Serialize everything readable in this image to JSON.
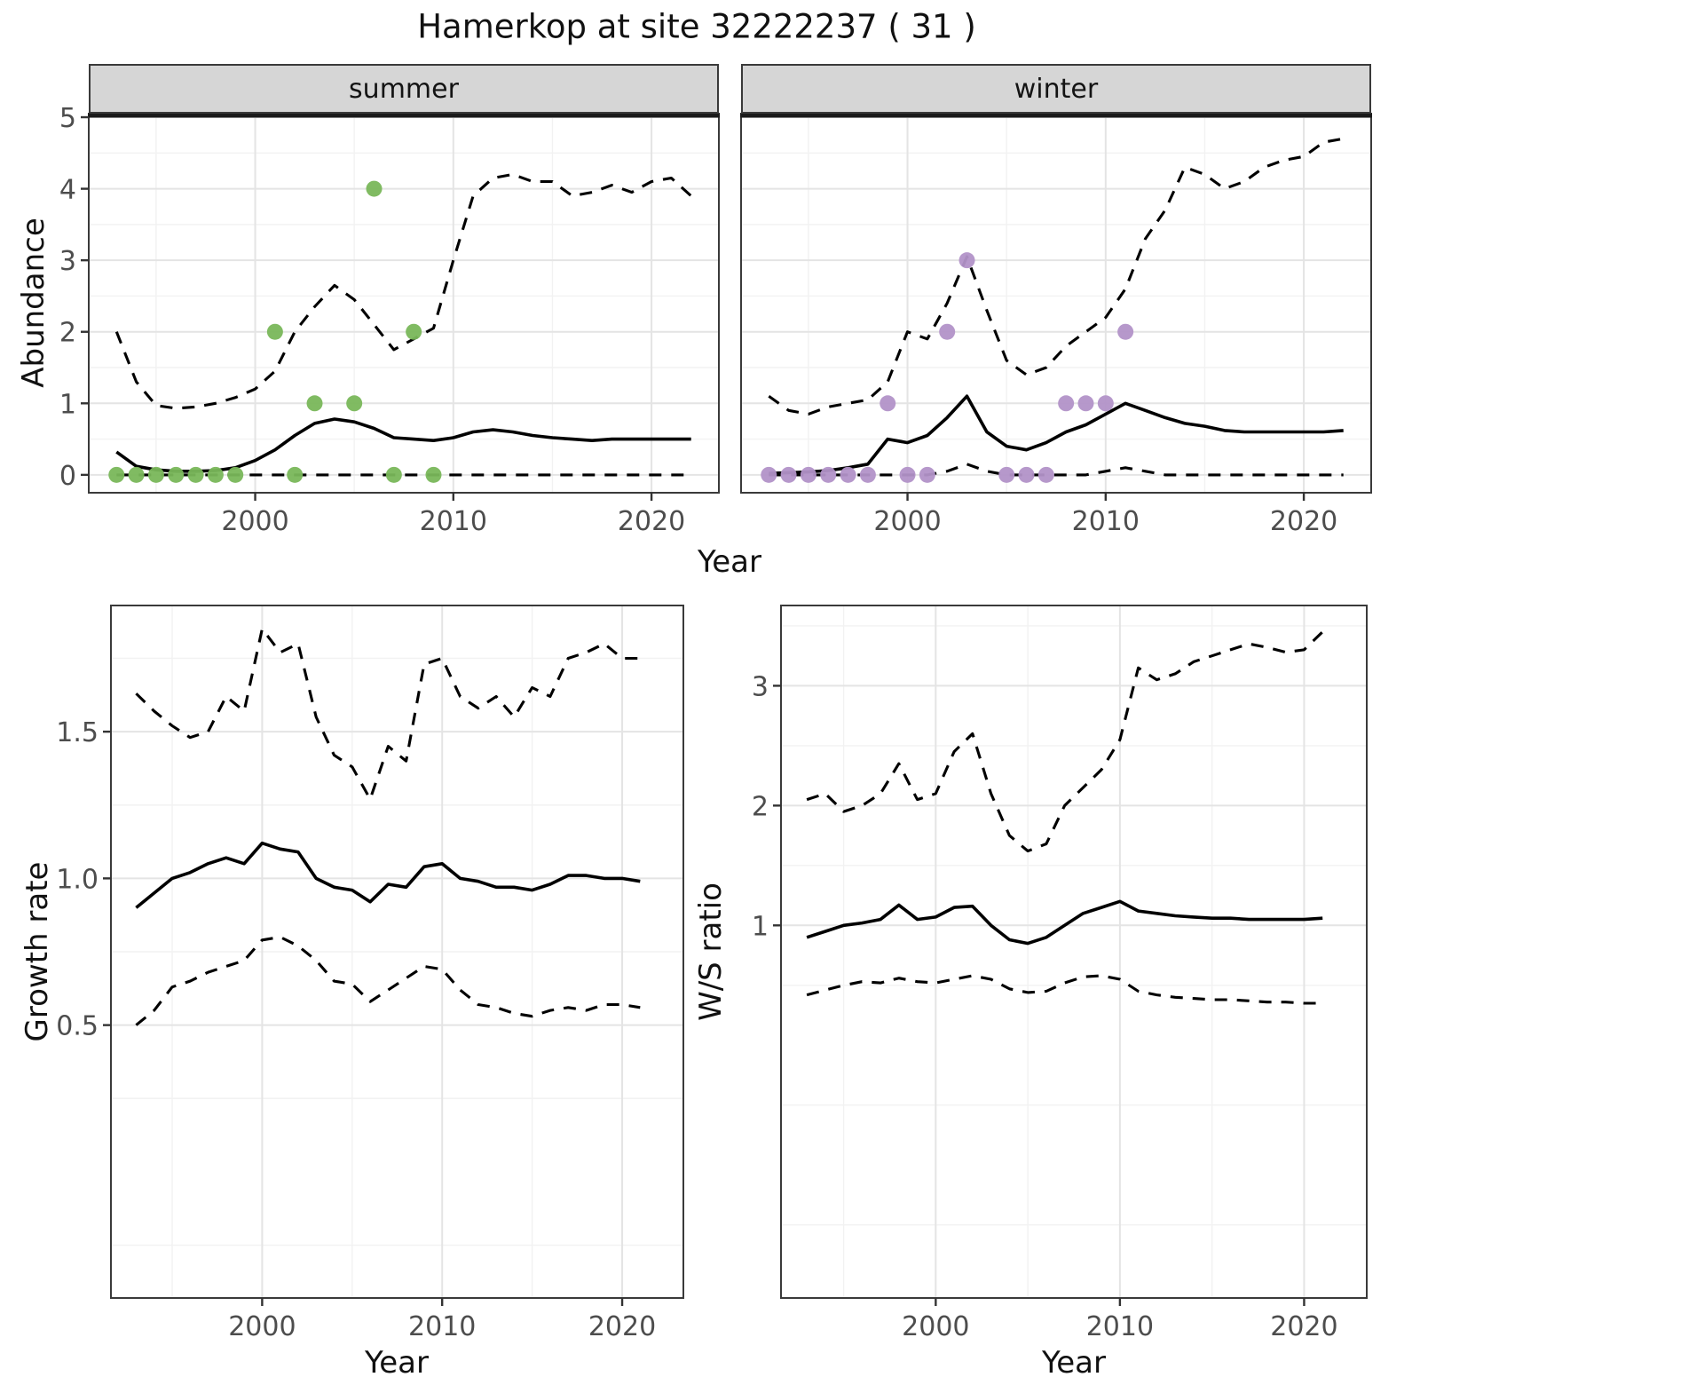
{
  "title": "Hamerkop at site 32222237 ( 31 )",
  "colors": {
    "summer_points": "#79b75a",
    "winter_points": "#b292c8",
    "line": "#000000",
    "grid_major": "#e4e4e4",
    "grid_minor": "#f2f2f2",
    "panel_border": "#3a3a3a",
    "panel_top_rule": "#1a1a1a",
    "strip_background": "#d6d6d6",
    "strip_border": "#3a3a3a",
    "axis_tick_text": "#4d4d4d"
  },
  "chart_data": [
    {
      "id": "abundance-summer",
      "type": "line",
      "facet_label": "summer",
      "xlabel": "Year",
      "ylabel": "Abundance",
      "xlim": [
        1991.6,
        2023.4
      ],
      "ylim": [
        -0.25,
        5.05
      ],
      "xticks": [
        2000,
        2010,
        2020
      ],
      "xtick_labels": [
        "2000",
        "2010",
        "2020"
      ],
      "yticks": [
        0,
        1,
        2,
        3,
        4,
        5
      ],
      "ytick_labels": [
        "0",
        "1",
        "2",
        "3",
        "4",
        "5"
      ],
      "x_minor": [
        1995,
        2005,
        2015
      ],
      "y_minor": [
        0.5,
        1.5,
        2.5,
        3.5,
        4.5
      ],
      "grid": true,
      "legend": "none",
      "series": [
        {
          "name": "mean",
          "style": "solid",
          "x": [
            1993,
            1994,
            1995,
            1996,
            1997,
            1998,
            1999,
            2000,
            2001,
            2002,
            2003,
            2004,
            2005,
            2006,
            2007,
            2008,
            2009,
            2010,
            2011,
            2012,
            2013,
            2014,
            2015,
            2016,
            2017,
            2018,
            2019,
            2020,
            2021,
            2022
          ],
          "y": [
            0.32,
            0.12,
            0.07,
            0.05,
            0.05,
            0.06,
            0.1,
            0.2,
            0.35,
            0.55,
            0.72,
            0.78,
            0.74,
            0.65,
            0.52,
            0.5,
            0.48,
            0.52,
            0.6,
            0.63,
            0.6,
            0.55,
            0.52,
            0.5,
            0.48,
            0.5,
            0.5,
            0.5,
            0.5,
            0.5
          ]
        },
        {
          "name": "upper-ci",
          "style": "dashed",
          "x": [
            1993,
            1994,
            1995,
            1996,
            1997,
            1998,
            1999,
            2000,
            2001,
            2002,
            2003,
            2004,
            2005,
            2006,
            2007,
            2008,
            2009,
            2010,
            2011,
            2012,
            2013,
            2014,
            2015,
            2016,
            2017,
            2018,
            2019,
            2020,
            2021,
            2022
          ],
          "y": [
            2.0,
            1.3,
            0.97,
            0.93,
            0.95,
            1.0,
            1.08,
            1.2,
            1.45,
            2.0,
            2.35,
            2.65,
            2.45,
            2.1,
            1.75,
            1.9,
            2.05,
            3.0,
            3.9,
            4.15,
            4.2,
            4.1,
            4.1,
            3.9,
            3.95,
            4.05,
            3.95,
            4.1,
            4.15,
            3.9
          ]
        },
        {
          "name": "lower-ci",
          "style": "dashed",
          "x": [
            1993,
            1994,
            1995,
            1996,
            1997,
            1998,
            1999,
            2000,
            2001,
            2002,
            2003,
            2004,
            2005,
            2006,
            2007,
            2008,
            2009,
            2010,
            2011,
            2012,
            2013,
            2014,
            2015,
            2016,
            2017,
            2018,
            2019,
            2020,
            2021,
            2022
          ],
          "y": [
            0,
            0,
            0,
            0,
            0,
            0,
            0,
            0,
            0,
            0,
            0,
            0,
            0,
            0,
            0,
            0,
            0,
            0,
            0,
            0,
            0,
            0,
            0,
            0,
            0,
            0,
            0,
            0,
            0,
            0
          ]
        }
      ],
      "points": {
        "name": "observed-counts",
        "color_key": "summer_points",
        "x": [
          1993,
          1994,
          1995,
          1996,
          1997,
          1998,
          1999,
          2001,
          2002,
          2003,
          2005,
          2006,
          2007,
          2008,
          2009
        ],
        "y": [
          0,
          0,
          0,
          0,
          0,
          0,
          0,
          2,
          0,
          1,
          1,
          4,
          0,
          2,
          0
        ]
      }
    },
    {
      "id": "abundance-winter",
      "type": "line",
      "facet_label": "winter",
      "xlabel": "Year",
      "ylabel": "Abundance",
      "xlim": [
        1991.6,
        2023.4
      ],
      "ylim": [
        -0.25,
        5.05
      ],
      "xticks": [
        2000,
        2010,
        2020
      ],
      "xtick_labels": [
        "2000",
        "2010",
        "2020"
      ],
      "yticks": [
        0,
        1,
        2,
        3,
        4,
        5
      ],
      "ytick_labels": [
        "0",
        "1",
        "2",
        "3",
        "4",
        "5"
      ],
      "x_minor": [
        1995,
        2005,
        2015
      ],
      "y_minor": [
        0.5,
        1.5,
        2.5,
        3.5,
        4.5
      ],
      "grid": true,
      "legend": "none",
      "series": [
        {
          "name": "mean",
          "style": "solid",
          "x": [
            1993,
            1994,
            1995,
            1996,
            1997,
            1998,
            1999,
            2000,
            2001,
            2002,
            2003,
            2004,
            2005,
            2006,
            2007,
            2008,
            2009,
            2010,
            2011,
            2012,
            2013,
            2014,
            2015,
            2016,
            2017,
            2018,
            2019,
            2020,
            2021,
            2022
          ],
          "y": [
            0.02,
            0.03,
            0.04,
            0.06,
            0.1,
            0.15,
            0.5,
            0.45,
            0.55,
            0.8,
            1.1,
            0.6,
            0.4,
            0.35,
            0.45,
            0.6,
            0.7,
            0.85,
            1.0,
            0.9,
            0.8,
            0.72,
            0.68,
            0.62,
            0.6,
            0.6,
            0.6,
            0.6,
            0.6,
            0.62
          ]
        },
        {
          "name": "upper-ci",
          "style": "dashed",
          "x": [
            1993,
            1994,
            1995,
            1996,
            1997,
            1998,
            1999,
            2000,
            2001,
            2002,
            2003,
            2004,
            2005,
            2006,
            2007,
            2008,
            2009,
            2010,
            2011,
            2012,
            2013,
            2014,
            2015,
            2016,
            2017,
            2018,
            2019,
            2020,
            2021,
            2022
          ],
          "y": [
            1.1,
            0.9,
            0.85,
            0.95,
            1.0,
            1.05,
            1.3,
            2.0,
            1.9,
            2.4,
            3.05,
            2.3,
            1.6,
            1.4,
            1.5,
            1.8,
            2.0,
            2.2,
            2.6,
            3.3,
            3.7,
            4.3,
            4.2,
            4.0,
            4.1,
            4.3,
            4.4,
            4.45,
            4.65,
            4.7
          ]
        },
        {
          "name": "lower-ci",
          "style": "dashed",
          "x": [
            1993,
            1994,
            1995,
            1996,
            1997,
            1998,
            1999,
            2000,
            2001,
            2002,
            2003,
            2004,
            2005,
            2006,
            2007,
            2008,
            2009,
            2010,
            2011,
            2012,
            2013,
            2014,
            2015,
            2016,
            2017,
            2018,
            2019,
            2020,
            2021,
            2022
          ],
          "y": [
            0,
            0,
            0,
            0,
            0,
            0,
            0,
            0,
            0,
            0.05,
            0.15,
            0.05,
            0,
            0,
            0,
            0,
            0,
            0.05,
            0.1,
            0.05,
            0,
            0,
            0,
            0,
            0,
            0,
            0,
            0,
            0,
            0
          ]
        }
      ],
      "points": {
        "name": "observed-counts",
        "color_key": "winter_points",
        "x": [
          1993,
          1994,
          1995,
          1996,
          1997,
          1998,
          1999,
          2000,
          2001,
          2002,
          2003,
          2005,
          2006,
          2007,
          2008,
          2009,
          2010,
          2011
        ],
        "y": [
          0,
          0,
          0,
          0,
          0,
          0,
          1,
          0,
          0,
          2,
          3,
          0,
          0,
          0,
          1,
          1,
          1,
          2
        ]
      }
    },
    {
      "id": "growth-rate",
      "type": "line",
      "xlabel": "Year",
      "ylabel": "Growth rate",
      "xlim": [
        1991.6,
        2023.4
      ],
      "ylim": [
        -0.43,
        1.93
      ],
      "xticks": [
        2000,
        2010,
        2020
      ],
      "xtick_labels": [
        "2000",
        "2010",
        "2020"
      ],
      "yticks": [
        0.5,
        1,
        1.5
      ],
      "ytick_labels": [
        "0.5",
        "1.0",
        "1.5"
      ],
      "x_minor": [
        1995,
        2005,
        2015
      ],
      "y_minor": [
        -0.25,
        0.25,
        0.75,
        1.25,
        1.75
      ],
      "grid": true,
      "legend": "none",
      "series": [
        {
          "name": "mean",
          "style": "solid",
          "x": [
            1993,
            1994,
            1995,
            1996,
            1997,
            1998,
            1999,
            2000,
            2001,
            2002,
            2003,
            2004,
            2005,
            2006,
            2007,
            2008,
            2009,
            2010,
            2011,
            2012,
            2013,
            2014,
            2015,
            2016,
            2017,
            2018,
            2019,
            2020,
            2021
          ],
          "y": [
            0.9,
            0.95,
            1.0,
            1.02,
            1.05,
            1.07,
            1.05,
            1.12,
            1.1,
            1.09,
            1.0,
            0.97,
            0.96,
            0.92,
            0.98,
            0.97,
            1.04,
            1.05,
            1.0,
            0.99,
            0.97,
            0.97,
            0.96,
            0.98,
            1.01,
            1.01,
            1.0,
            1.0,
            0.99
          ]
        },
        {
          "name": "upper-ci",
          "style": "dashed",
          "x": [
            1993,
            1994,
            1995,
            1996,
            1997,
            1998,
            1999,
            2000,
            2001,
            2002,
            2003,
            2004,
            2005,
            2006,
            2007,
            2008,
            2009,
            2010,
            2011,
            2012,
            2013,
            2014,
            2015,
            2016,
            2017,
            2018,
            2019,
            2020,
            2021
          ],
          "y": [
            1.63,
            1.57,
            1.52,
            1.48,
            1.5,
            1.62,
            1.57,
            1.85,
            1.77,
            1.8,
            1.55,
            1.42,
            1.38,
            1.27,
            1.45,
            1.4,
            1.73,
            1.75,
            1.62,
            1.58,
            1.62,
            1.55,
            1.65,
            1.62,
            1.75,
            1.77,
            1.8,
            1.75,
            1.75
          ]
        },
        {
          "name": "lower-ci",
          "style": "dashed",
          "x": [
            1993,
            1994,
            1995,
            1996,
            1997,
            1998,
            1999,
            2000,
            2001,
            2002,
            2003,
            2004,
            2005,
            2006,
            2007,
            2008,
            2009,
            2010,
            2011,
            2012,
            2013,
            2014,
            2015,
            2016,
            2017,
            2018,
            2019,
            2020,
            2021
          ],
          "y": [
            0.5,
            0.55,
            0.63,
            0.65,
            0.68,
            0.7,
            0.72,
            0.79,
            0.8,
            0.77,
            0.72,
            0.65,
            0.64,
            0.58,
            0.62,
            0.66,
            0.7,
            0.69,
            0.62,
            0.57,
            0.56,
            0.54,
            0.53,
            0.55,
            0.56,
            0.55,
            0.57,
            0.57,
            0.56
          ]
        }
      ]
    },
    {
      "id": "ws-ratio",
      "type": "line",
      "xlabel": "Year",
      "ylabel": "W/S ratio",
      "xlim": [
        1991.6,
        2023.4
      ],
      "ylim": [
        -2.11,
        3.67
      ],
      "xticks": [
        2000,
        2010,
        2020
      ],
      "xtick_labels": [
        "2000",
        "2010",
        "2020"
      ],
      "yticks": [
        1,
        2,
        3
      ],
      "ytick_labels": [
        "1",
        "2",
        "3"
      ],
      "x_minor": [
        1995,
        2005,
        2015
      ],
      "y_minor": [
        -1.5,
        -0.5,
        0.5,
        1.5,
        2.5,
        3.5
      ],
      "grid": true,
      "legend": "none",
      "series": [
        {
          "name": "mean",
          "style": "solid",
          "x": [
            1993,
            1994,
            1995,
            1996,
            1997,
            1998,
            1999,
            2000,
            2001,
            2002,
            2003,
            2004,
            2005,
            2006,
            2007,
            2008,
            2009,
            2010,
            2011,
            2012,
            2013,
            2014,
            2015,
            2016,
            2017,
            2018,
            2019,
            2020,
            2021
          ],
          "y": [
            0.9,
            0.95,
            1.0,
            1.02,
            1.05,
            1.17,
            1.05,
            1.07,
            1.15,
            1.16,
            1.0,
            0.88,
            0.85,
            0.9,
            1.0,
            1.1,
            1.15,
            1.2,
            1.12,
            1.1,
            1.08,
            1.07,
            1.06,
            1.06,
            1.05,
            1.05,
            1.05,
            1.05,
            1.06
          ]
        },
        {
          "name": "upper-ci",
          "style": "dashed",
          "x": [
            1993,
            1994,
            1995,
            1996,
            1997,
            1998,
            1999,
            2000,
            2001,
            2002,
            2003,
            2004,
            2005,
            2006,
            2007,
            2008,
            2009,
            2010,
            2011,
            2012,
            2013,
            2014,
            2015,
            2016,
            2017,
            2018,
            2019,
            2020,
            2021
          ],
          "y": [
            2.05,
            2.1,
            1.95,
            2.0,
            2.1,
            2.35,
            2.05,
            2.1,
            2.45,
            2.6,
            2.1,
            1.75,
            1.62,
            1.68,
            2.0,
            2.15,
            2.3,
            2.55,
            3.15,
            3.05,
            3.1,
            3.2,
            3.25,
            3.3,
            3.35,
            3.32,
            3.28,
            3.3,
            3.45
          ]
        },
        {
          "name": "lower-ci",
          "style": "dashed",
          "x": [
            1993,
            1994,
            1995,
            1996,
            1997,
            1998,
            1999,
            2000,
            2001,
            2002,
            2003,
            2004,
            2005,
            2006,
            2007,
            2008,
            2009,
            2010,
            2011,
            2012,
            2013,
            2014,
            2015,
            2016,
            2017,
            2018,
            2019,
            2020,
            2021
          ],
          "y": [
            0.42,
            0.46,
            0.5,
            0.53,
            0.52,
            0.56,
            0.53,
            0.52,
            0.55,
            0.58,
            0.55,
            0.47,
            0.44,
            0.45,
            0.52,
            0.57,
            0.58,
            0.55,
            0.45,
            0.42,
            0.4,
            0.39,
            0.38,
            0.38,
            0.37,
            0.36,
            0.36,
            0.35,
            0.35
          ]
        }
      ]
    }
  ]
}
